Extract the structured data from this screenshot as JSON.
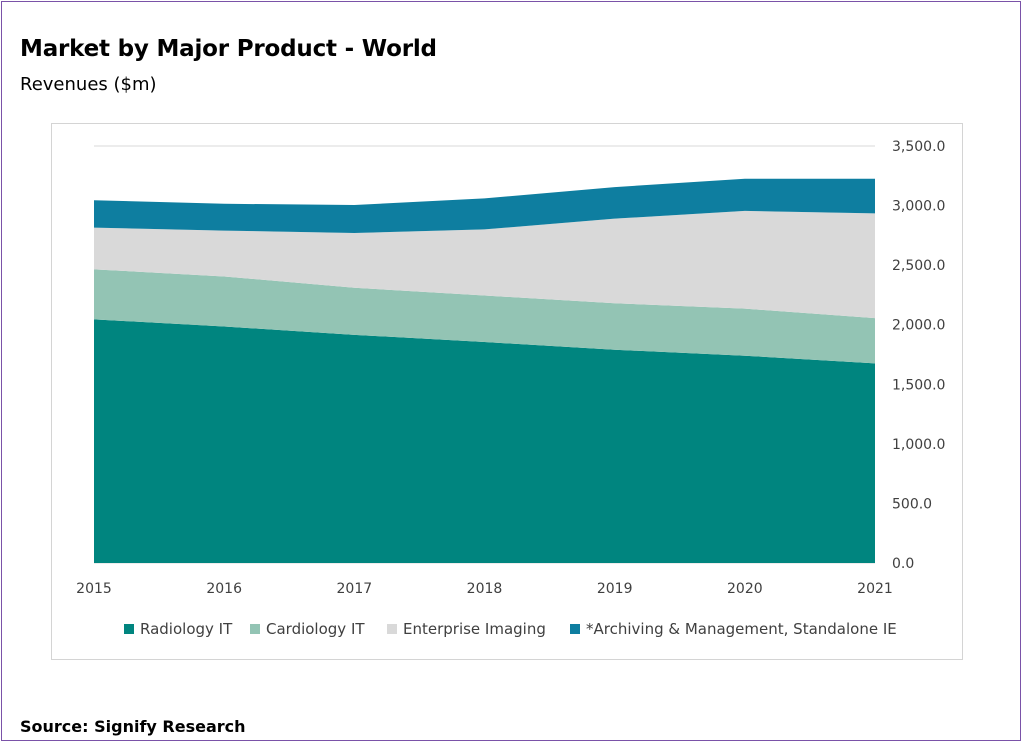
{
  "header": {
    "title": "Market by Major Product - World",
    "subtitle": "Revenues ($m)"
  },
  "footer": {
    "source": "Source: Signify Research"
  },
  "colors": {
    "radiology": "#00857f",
    "cardiology": "#93c4b4",
    "enterprise": "#d9d9d9",
    "archiving": "#0e7ea0",
    "gridline": "#d9d9d9",
    "frame": "#7a52a8"
  },
  "chart_data": {
    "type": "area",
    "stacked": true,
    "title": "Market by Major Product - World",
    "ylabel": "Revenues ($m)",
    "categories": [
      "2015",
      "2016",
      "2017",
      "2018",
      "2019",
      "2020",
      "2021"
    ],
    "ylim": [
      0,
      3500
    ],
    "yticks": [
      "3,500.0",
      "3,000.0",
      "2,500.0",
      "2,000.0",
      "1,500.0",
      "1,000.0",
      "500.0",
      "0.0"
    ],
    "ytick_values": [
      3500,
      3000,
      2500,
      2000,
      1500,
      1000,
      500,
      0
    ],
    "y_axis_side": "right",
    "grid": true,
    "legend_position": "bottom",
    "series": [
      {
        "name": "Radiology IT",
        "color": "#00857f",
        "values": [
          2045,
          1985,
          1915,
          1855,
          1790,
          1740,
          1675
        ]
      },
      {
        "name": "Cardiology IT",
        "color": "#93c4b4",
        "values": [
          420,
          420,
          395,
          390,
          390,
          395,
          380
        ]
      },
      {
        "name": "Enterprise Imaging",
        "color": "#d9d9d9",
        "values": [
          350,
          385,
          460,
          555,
          710,
          820,
          880
        ]
      },
      {
        "name": "*Archiving & Management, Standalone IE",
        "color": "#0e7ea0",
        "values": [
          230,
          225,
          235,
          260,
          265,
          270,
          290
        ]
      }
    ]
  }
}
